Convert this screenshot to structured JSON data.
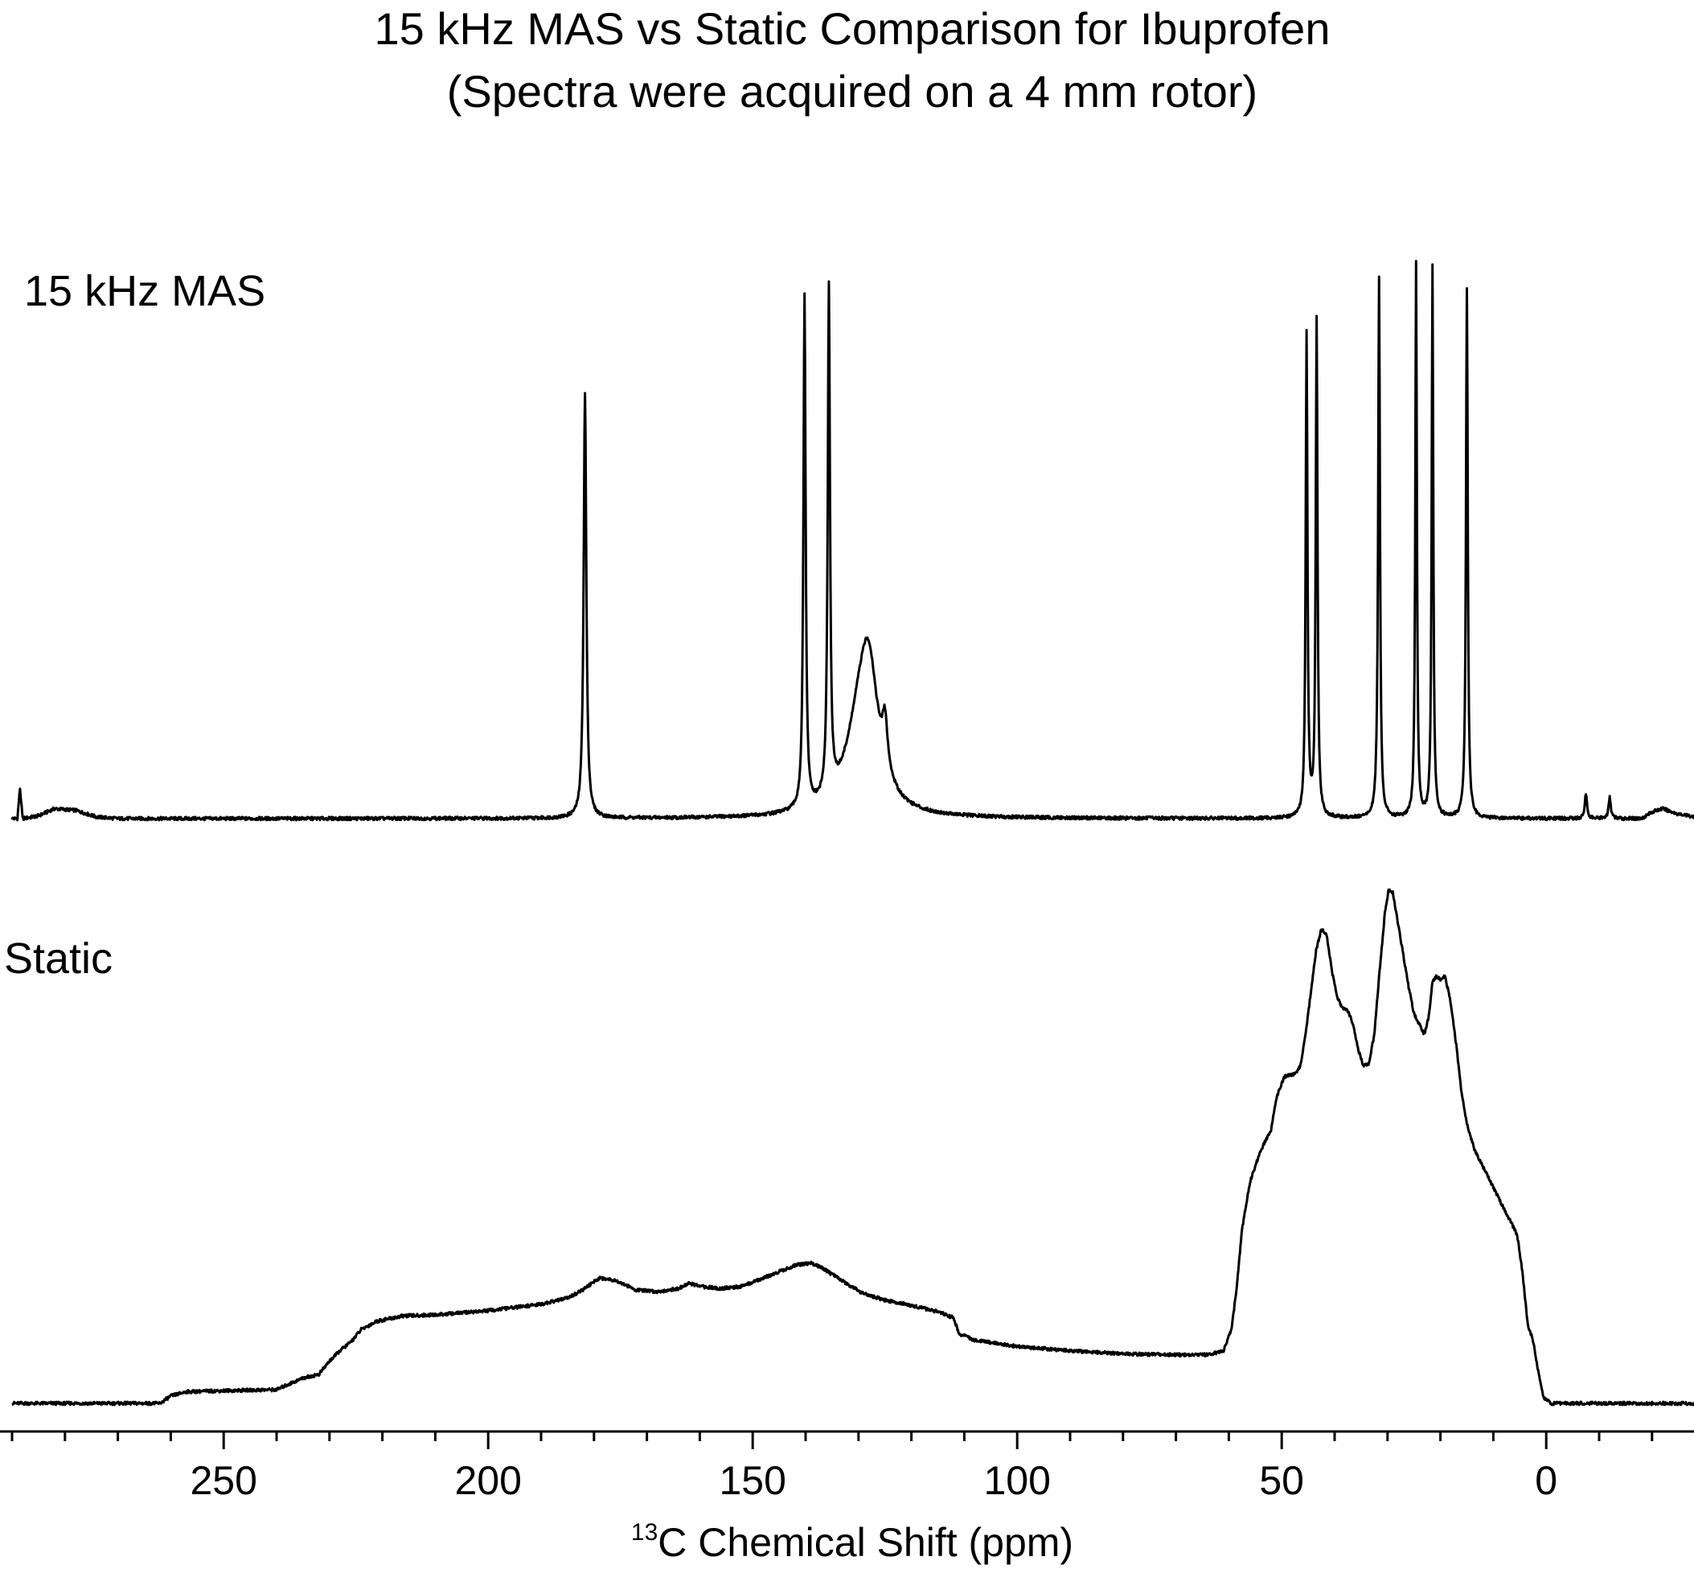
{
  "chart_data": {
    "type": "line",
    "title": "15 kHz MAS vs Static Comparison for Ibuprofen",
    "subtitle": "(Spectra were acquired on a 4 mm rotor)",
    "xlabel_sup": "13",
    "xlabel": "C Chemical Shift (ppm)",
    "ylabel": "",
    "xlim": [
      290,
      -30
    ],
    "x_reversed": true,
    "grid": false,
    "xticks_major": [
      250,
      200,
      150,
      100,
      50,
      0
    ],
    "xtick_labels": [
      "250",
      "200",
      "150",
      "100",
      "50",
      "0"
    ],
    "xticks_minor_step": 10,
    "series": [
      {
        "name": "15 kHz MAS",
        "shape": "peaks",
        "baseline": 0,
        "ylim": [
          -0.02,
          1.05
        ],
        "points": [
          [
            290,
            0.0
          ],
          [
            289.0,
            0.0
          ],
          [
            288.5,
            0.055
          ],
          [
            288.0,
            0.0
          ],
          [
            285,
            0.005
          ],
          [
            282,
            0.018
          ],
          [
            278,
            0.015
          ],
          [
            274,
            0.003
          ],
          [
            270,
            0.0
          ],
          [
            -18,
            0.0
          ],
          [
            -20,
            0.012
          ],
          [
            -22,
            0.018
          ],
          [
            -25,
            0.008
          ],
          [
            -30,
            0.0
          ]
        ],
        "peaks": [
          {
            "x": 181.7,
            "h": 0.768,
            "w": 0.3
          },
          {
            "x": 140.2,
            "h": 0.925,
            "w": 0.25
          },
          {
            "x": 135.6,
            "h": 0.92,
            "w": 0.25
          },
          {
            "x": 129.6,
            "h": 0.17,
            "w": 3.2
          },
          {
            "x": 128.0,
            "h": 0.18,
            "w": 2.0
          },
          {
            "x": 125.0,
            "h": 0.09,
            "w": 0.6
          },
          {
            "x": 45.3,
            "h": 0.87,
            "w": 0.2
          },
          {
            "x": 43.4,
            "h": 0.9,
            "w": 0.2
          },
          {
            "x": 32.0,
            "h": 0.015,
            "w": 0.4
          },
          {
            "x": 31.6,
            "h": 0.97,
            "w": 0.2
          },
          {
            "x": 24.6,
            "h": 1.0,
            "w": 0.18
          },
          {
            "x": 21.5,
            "h": 0.995,
            "w": 0.18
          },
          {
            "x": 15.0,
            "h": 0.96,
            "w": 0.2
          },
          {
            "x": -7.5,
            "h": 0.045,
            "w": 0.25
          },
          {
            "x": -12.0,
            "h": 0.038,
            "w": 0.25
          }
        ]
      },
      {
        "name": "Static",
        "shape": "broad",
        "ylim": [
          -0.02,
          1.05
        ],
        "points": [
          [
            290,
            0.0
          ],
          [
            275,
            0.0
          ],
          [
            262,
            0.0
          ],
          [
            260,
            0.014
          ],
          [
            257,
            0.022
          ],
          [
            250,
            0.024
          ],
          [
            240,
            0.026
          ],
          [
            238,
            0.035
          ],
          [
            235,
            0.048
          ],
          [
            232,
            0.055
          ],
          [
            230,
            0.08
          ],
          [
            228,
            0.1
          ],
          [
            226,
            0.116
          ],
          [
            224,
            0.14
          ],
          [
            221,
            0.156
          ],
          [
            216,
            0.166
          ],
          [
            210,
            0.168
          ],
          [
            200,
            0.176
          ],
          [
            190,
            0.188
          ],
          [
            185,
            0.2
          ],
          [
            182,
            0.216
          ],
          [
            179,
            0.238
          ],
          [
            176,
            0.234
          ],
          [
            172,
            0.215
          ],
          [
            168,
            0.212
          ],
          [
            164,
            0.218
          ],
          [
            162,
            0.228
          ],
          [
            160,
            0.222
          ],
          [
            156,
            0.218
          ],
          [
            152,
            0.222
          ],
          [
            148,
            0.238
          ],
          [
            145,
            0.25
          ],
          [
            142,
            0.262
          ],
          [
            139,
            0.266
          ],
          [
            137,
            0.258
          ],
          [
            133,
            0.232
          ],
          [
            129,
            0.208
          ],
          [
            125,
            0.196
          ],
          [
            120,
            0.186
          ],
          [
            115,
            0.174
          ],
          [
            112,
            0.162
          ],
          [
            111,
            0.132
          ],
          [
            108,
            0.12
          ],
          [
            100,
            0.108
          ],
          [
            90,
            0.1
          ],
          [
            80,
            0.094
          ],
          [
            70,
            0.092
          ],
          [
            64,
            0.092
          ],
          [
            61,
            0.1
          ],
          [
            59.5,
            0.14
          ],
          [
            58.5,
            0.22
          ],
          [
            57.5,
            0.33
          ],
          [
            56,
            0.42
          ],
          [
            54,
            0.48
          ],
          [
            52,
            0.52
          ],
          [
            51,
            0.58
          ],
          [
            49.5,
            0.62
          ],
          [
            47.5,
            0.625
          ],
          [
            46.5,
            0.64
          ],
          [
            45.5,
            0.7
          ],
          [
            44.5,
            0.78
          ],
          [
            43.5,
            0.86
          ],
          [
            42.5,
            0.9
          ],
          [
            41.5,
            0.89
          ],
          [
            40.5,
            0.82
          ],
          [
            39.5,
            0.77
          ],
          [
            38.5,
            0.75
          ],
          [
            37.5,
            0.745
          ],
          [
            36.5,
            0.72
          ],
          [
            35.5,
            0.67
          ],
          [
            34.5,
            0.64
          ],
          [
            33.5,
            0.645
          ],
          [
            32.5,
            0.7
          ],
          [
            31.5,
            0.82
          ],
          [
            30.5,
            0.93
          ],
          [
            29.8,
            0.975
          ],
          [
            29.0,
            0.97
          ],
          [
            28,
            0.91
          ],
          [
            27,
            0.85
          ],
          [
            26,
            0.79
          ],
          [
            25,
            0.74
          ],
          [
            24,
            0.72
          ],
          [
            23,
            0.7
          ],
          [
            22.2,
            0.735
          ],
          [
            21.5,
            0.8
          ],
          [
            20.8,
            0.81
          ],
          [
            20,
            0.805
          ],
          [
            19.2,
            0.812
          ],
          [
            18.2,
            0.77
          ],
          [
            17,
            0.68
          ],
          [
            16,
            0.59
          ],
          [
            15,
            0.53
          ],
          [
            13.5,
            0.48
          ],
          [
            11.5,
            0.44
          ],
          [
            9.5,
            0.4
          ],
          [
            7.5,
            0.36
          ],
          [
            5.5,
            0.32
          ],
          [
            4.5,
            0.25
          ],
          [
            3.5,
            0.15
          ],
          [
            2.5,
            0.12
          ],
          [
            1.5,
            0.06
          ],
          [
            0.5,
            0.01
          ],
          [
            -1,
            0.0
          ],
          [
            -10,
            0.0
          ],
          [
            -20,
            0.0
          ],
          [
            -30,
            0.0
          ]
        ]
      }
    ]
  }
}
